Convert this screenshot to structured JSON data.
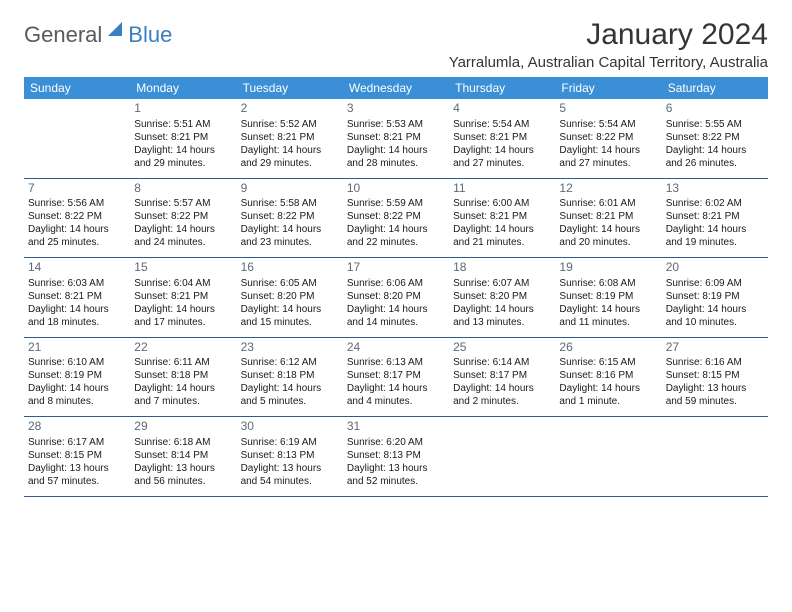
{
  "logo": {
    "general": "General",
    "blue": "Blue"
  },
  "title": "January 2024",
  "location": "Yarralumla, Australian Capital Territory, Australia",
  "weekdays": [
    "Sunday",
    "Monday",
    "Tuesday",
    "Wednesday",
    "Thursday",
    "Friday",
    "Saturday"
  ],
  "colors": {
    "header_bg": "#3b8fd6",
    "header_text": "#ffffff",
    "border": "#2d5c8a",
    "daynum": "#5a6b78",
    "body_text": "#1a1a1a",
    "logo_gray": "#5a5a5a",
    "logo_blue": "#3a7fc4"
  },
  "font": {
    "family": "Arial",
    "title_size": 30,
    "location_size": 15,
    "weekday_size": 12,
    "daynum_size": 12,
    "body_size": 10
  },
  "grid": {
    "start_weekday": 1,
    "days_in_month": 31,
    "rows": 5,
    "cols": 7
  },
  "days": [
    {
      "n": 1,
      "sunrise": "5:51 AM",
      "sunset": "8:21 PM",
      "daylight": "14 hours and 29 minutes."
    },
    {
      "n": 2,
      "sunrise": "5:52 AM",
      "sunset": "8:21 PM",
      "daylight": "14 hours and 29 minutes."
    },
    {
      "n": 3,
      "sunrise": "5:53 AM",
      "sunset": "8:21 PM",
      "daylight": "14 hours and 28 minutes."
    },
    {
      "n": 4,
      "sunrise": "5:54 AM",
      "sunset": "8:21 PM",
      "daylight": "14 hours and 27 minutes."
    },
    {
      "n": 5,
      "sunrise": "5:54 AM",
      "sunset": "8:22 PM",
      "daylight": "14 hours and 27 minutes."
    },
    {
      "n": 6,
      "sunrise": "5:55 AM",
      "sunset": "8:22 PM",
      "daylight": "14 hours and 26 minutes."
    },
    {
      "n": 7,
      "sunrise": "5:56 AM",
      "sunset": "8:22 PM",
      "daylight": "14 hours and 25 minutes."
    },
    {
      "n": 8,
      "sunrise": "5:57 AM",
      "sunset": "8:22 PM",
      "daylight": "14 hours and 24 minutes."
    },
    {
      "n": 9,
      "sunrise": "5:58 AM",
      "sunset": "8:22 PM",
      "daylight": "14 hours and 23 minutes."
    },
    {
      "n": 10,
      "sunrise": "5:59 AM",
      "sunset": "8:22 PM",
      "daylight": "14 hours and 22 minutes."
    },
    {
      "n": 11,
      "sunrise": "6:00 AM",
      "sunset": "8:21 PM",
      "daylight": "14 hours and 21 minutes."
    },
    {
      "n": 12,
      "sunrise": "6:01 AM",
      "sunset": "8:21 PM",
      "daylight": "14 hours and 20 minutes."
    },
    {
      "n": 13,
      "sunrise": "6:02 AM",
      "sunset": "8:21 PM",
      "daylight": "14 hours and 19 minutes."
    },
    {
      "n": 14,
      "sunrise": "6:03 AM",
      "sunset": "8:21 PM",
      "daylight": "14 hours and 18 minutes."
    },
    {
      "n": 15,
      "sunrise": "6:04 AM",
      "sunset": "8:21 PM",
      "daylight": "14 hours and 17 minutes."
    },
    {
      "n": 16,
      "sunrise": "6:05 AM",
      "sunset": "8:20 PM",
      "daylight": "14 hours and 15 minutes."
    },
    {
      "n": 17,
      "sunrise": "6:06 AM",
      "sunset": "8:20 PM",
      "daylight": "14 hours and 14 minutes."
    },
    {
      "n": 18,
      "sunrise": "6:07 AM",
      "sunset": "8:20 PM",
      "daylight": "14 hours and 13 minutes."
    },
    {
      "n": 19,
      "sunrise": "6:08 AM",
      "sunset": "8:19 PM",
      "daylight": "14 hours and 11 minutes."
    },
    {
      "n": 20,
      "sunrise": "6:09 AM",
      "sunset": "8:19 PM",
      "daylight": "14 hours and 10 minutes."
    },
    {
      "n": 21,
      "sunrise": "6:10 AM",
      "sunset": "8:19 PM",
      "daylight": "14 hours and 8 minutes."
    },
    {
      "n": 22,
      "sunrise": "6:11 AM",
      "sunset": "8:18 PM",
      "daylight": "14 hours and 7 minutes."
    },
    {
      "n": 23,
      "sunrise": "6:12 AM",
      "sunset": "8:18 PM",
      "daylight": "14 hours and 5 minutes."
    },
    {
      "n": 24,
      "sunrise": "6:13 AM",
      "sunset": "8:17 PM",
      "daylight": "14 hours and 4 minutes."
    },
    {
      "n": 25,
      "sunrise": "6:14 AM",
      "sunset": "8:17 PM",
      "daylight": "14 hours and 2 minutes."
    },
    {
      "n": 26,
      "sunrise": "6:15 AM",
      "sunset": "8:16 PM",
      "daylight": "14 hours and 1 minute."
    },
    {
      "n": 27,
      "sunrise": "6:16 AM",
      "sunset": "8:15 PM",
      "daylight": "13 hours and 59 minutes."
    },
    {
      "n": 28,
      "sunrise": "6:17 AM",
      "sunset": "8:15 PM",
      "daylight": "13 hours and 57 minutes."
    },
    {
      "n": 29,
      "sunrise": "6:18 AM",
      "sunset": "8:14 PM",
      "daylight": "13 hours and 56 minutes."
    },
    {
      "n": 30,
      "sunrise": "6:19 AM",
      "sunset": "8:13 PM",
      "daylight": "13 hours and 54 minutes."
    },
    {
      "n": 31,
      "sunrise": "6:20 AM",
      "sunset": "8:13 PM",
      "daylight": "13 hours and 52 minutes."
    }
  ],
  "labels": {
    "sunrise": "Sunrise:",
    "sunset": "Sunset:",
    "daylight": "Daylight:"
  }
}
